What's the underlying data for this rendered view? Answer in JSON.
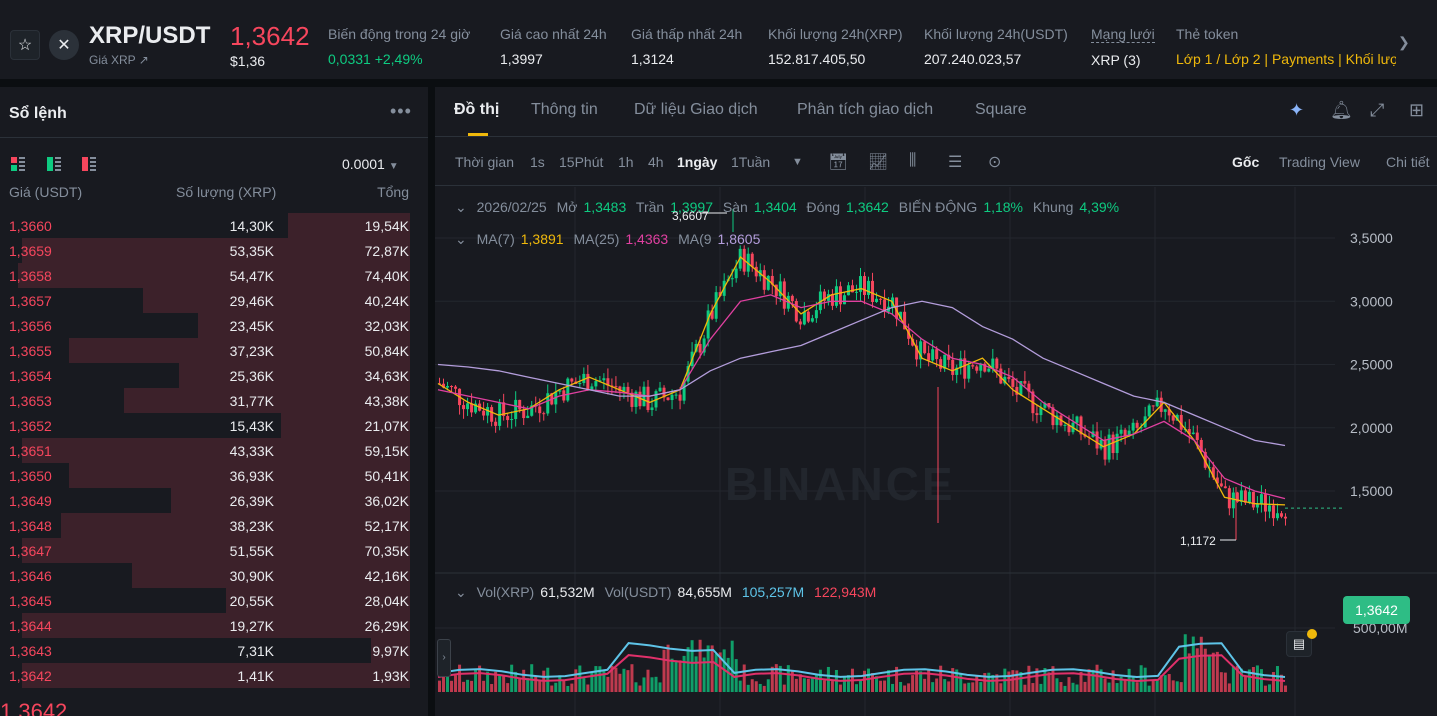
{
  "header": {
    "pair": "XRP/USDT",
    "sub": "Giá XRP ↗",
    "last_price": "1,3642",
    "last_usd": "$1,36",
    "stats": [
      {
        "label": "Biến động trong 24 giờ",
        "value": "0,0331 +2,49%",
        "color": "green"
      },
      {
        "label": "Giá cao nhất 24h",
        "value": "1,3997",
        "color": "white"
      },
      {
        "label": "Giá thấp nhất 24h",
        "value": "1,3124",
        "color": "white"
      },
      {
        "label": "Khối lượng 24h(XRP)",
        "value": "152.817.405,50",
        "color": "white"
      },
      {
        "label": "Khối lượng 24h(USDT)",
        "value": "207.240.023,57",
        "color": "white"
      },
      {
        "label": "Mạng lưới",
        "value": "XRP (3)",
        "color": "white"
      },
      {
        "label": "Thẻ token",
        "value": "Lớp 1 / Lớp 2 | Payments | Khối lượ",
        "color": "gold"
      }
    ]
  },
  "orderbook": {
    "title": "Sổ lệnh",
    "precision": "0.0001",
    "col_price": "Giá (USDT)",
    "col_qty": "Số lượng (XRP)",
    "col_total": "Tổng",
    "rows": [
      {
        "price": "1,3660",
        "qty": "14,30K",
        "total": "19,54K",
        "depth": 0.31
      },
      {
        "price": "1,3659",
        "qty": "53,35K",
        "total": "72,87K",
        "depth": 0.99
      },
      {
        "price": "1,3658",
        "qty": "54,47K",
        "total": "74,40K",
        "depth": 1.0
      },
      {
        "price": "1,3657",
        "qty": "29,46K",
        "total": "40,24K",
        "depth": 0.68
      },
      {
        "price": "1,3656",
        "qty": "23,45K",
        "total": "32,03K",
        "depth": 0.54
      },
      {
        "price": "1,3655",
        "qty": "37,23K",
        "total": "50,84K",
        "depth": 0.87
      },
      {
        "price": "1,3654",
        "qty": "25,36K",
        "total": "34,63K",
        "depth": 0.59
      },
      {
        "price": "1,3653",
        "qty": "31,77K",
        "total": "43,38K",
        "depth": 0.73
      },
      {
        "price": "1,3652",
        "qty": "15,43K",
        "total": "21,07K",
        "depth": 0.33
      },
      {
        "price": "1,3651",
        "qty": "43,33K",
        "total": "59,15K",
        "depth": 0.99
      },
      {
        "price": "1,3650",
        "qty": "36,93K",
        "total": "50,41K",
        "depth": 0.87
      },
      {
        "price": "1,3649",
        "qty": "26,39K",
        "total": "36,02K",
        "depth": 0.61
      },
      {
        "price": "1,3648",
        "qty": "38,23K",
        "total": "52,17K",
        "depth": 0.89
      },
      {
        "price": "1,3647",
        "qty": "51,55K",
        "total": "70,35K",
        "depth": 0.99
      },
      {
        "price": "1,3646",
        "qty": "30,90K",
        "total": "42,16K",
        "depth": 0.71
      },
      {
        "price": "1,3645",
        "qty": "20,55K",
        "total": "28,04K",
        "depth": 0.47
      },
      {
        "price": "1,3644",
        "qty": "19,27K",
        "total": "26,29K",
        "depth": 0.99
      },
      {
        "price": "1,3643",
        "qty": "7,31K",
        "total": "9,97K",
        "depth": 0.1
      },
      {
        "price": "1,3642",
        "qty": "1,41K",
        "total": "1,93K",
        "depth": 0.99
      }
    ],
    "bottom_price": "1,3642"
  },
  "chart_tabs": [
    "Đồ thị",
    "Thông tin",
    "Dữ liệu Giao dịch",
    "Phân tích giao dịch",
    "Square"
  ],
  "toolbar": {
    "intervals": [
      "Thời gian",
      "1s",
      "15Phút",
      "1h",
      "4h",
      "1ngày",
      "1Tuần"
    ],
    "active_interval": "1ngày",
    "views": [
      "Gốc",
      "Trading View",
      "Chi tiết"
    ]
  },
  "ohlc_legend": {
    "date": "2026/02/25",
    "open_label": "Mở",
    "open": "1,3483",
    "high_label": "Trần",
    "high": "1,3997",
    "low_label": "Sàn",
    "low": "1,3404",
    "close_label": "Đóng",
    "close": "1,3642",
    "change_label": "BIẾN ĐỘNG",
    "change": "1,18%",
    "range_label": "Khung",
    "range": "4,39%"
  },
  "ma_legend": {
    "ma7_label": "MA(7)",
    "ma7": "1,3891",
    "ma25_label": "MA(25)",
    "ma25": "1,4363",
    "ma99_label": "MA(9",
    "ma99": "1,8605"
  },
  "vol_legend": {
    "vol_xrp_label": "Vol(XRP)",
    "vol_xrp": "61,532M",
    "vol_usdt_label": "Vol(USDT)",
    "vol_usdt": "84,655M",
    "ma1": "105,257M",
    "ma2": "122,943M"
  },
  "price_axis": [
    "3,5000",
    "3,0000",
    "2,5000",
    "2,0000",
    "1,5000"
  ],
  "vol_axis": [
    "500,00M"
  ],
  "current_price_tag": "1,3642",
  "high_marker": "3,6607",
  "low_marker": "1,1172",
  "watermark": "BINANCE",
  "colors": {
    "up": "#0ecb81",
    "down": "#f6465d",
    "accent": "#f0b90b",
    "bg": "#181a20"
  },
  "chart_data": {
    "type": "line",
    "series": [
      {
        "name": "MA(7)",
        "values": [
          2.35,
          2.2,
          2.1,
          2.15,
          2.3,
          2.4,
          2.3,
          2.2,
          2.3,
          2.9,
          3.35,
          3.15,
          2.9,
          3.05,
          3.1,
          3.0,
          2.55,
          2.45,
          2.55,
          2.3,
          2.15,
          2.0,
          1.85,
          1.95,
          2.2,
          1.9,
          1.45,
          1.4,
          1.39
        ]
      },
      {
        "name": "MA(25)",
        "values": [
          2.3,
          2.25,
          2.2,
          2.15,
          2.25,
          2.3,
          2.28,
          2.25,
          2.3,
          2.7,
          3.0,
          3.05,
          2.95,
          3.0,
          3.0,
          2.9,
          2.7,
          2.55,
          2.5,
          2.4,
          2.2,
          2.05,
          1.9,
          1.95,
          2.05,
          1.9,
          1.6,
          1.5,
          1.44
        ]
      },
      {
        "name": "MA(99)",
        "values": [
          2.5,
          2.48,
          2.45,
          2.4,
          2.35,
          2.3,
          2.25,
          2.25,
          2.3,
          2.45,
          2.55,
          2.6,
          2.65,
          2.75,
          2.85,
          2.95,
          3.0,
          2.95,
          2.8,
          2.7,
          2.55,
          2.45,
          2.35,
          2.25,
          2.2,
          2.1,
          2.0,
          1.9,
          1.86
        ]
      }
    ],
    "ylim": [
      1.0,
      3.8
    ]
  }
}
